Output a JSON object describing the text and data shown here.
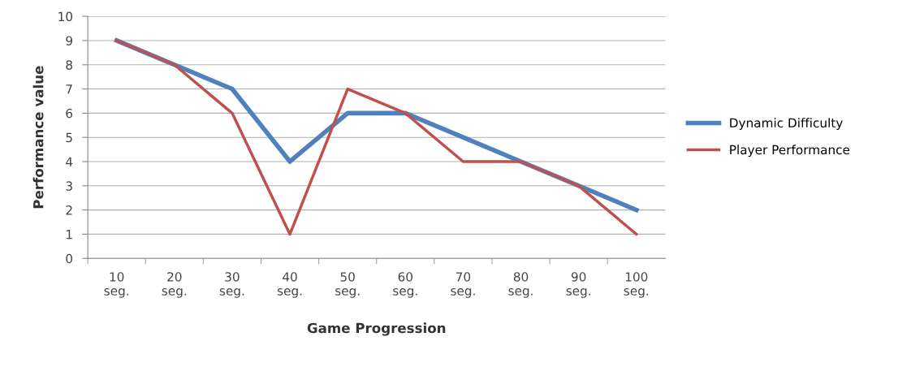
{
  "chart_data": {
    "type": "line",
    "xlabel": "Game Progression",
    "ylabel": "Performance value",
    "categories": [
      "10\nseg.",
      "20\nseg.",
      "30\nseg.",
      "40\nseg.",
      "50\nseg.",
      "60\nseg.",
      "70\nseg.",
      "80\nseg.",
      "90\nseg.",
      "100\nseg."
    ],
    "series": [
      {
        "name": "Dynamic Difficulty",
        "color": "#4f81bd",
        "values": [
          9,
          8,
          7,
          4,
          6,
          6,
          5,
          4,
          3,
          2
        ]
      },
      {
        "name": "Player Performance",
        "color": "#c0504d",
        "values": [
          9,
          8,
          6,
          1,
          7,
          6,
          4,
          4,
          3,
          1
        ]
      }
    ],
    "ylim": [
      0,
      10
    ],
    "yticks": [
      0,
      1,
      2,
      3,
      4,
      5,
      6,
      7,
      8,
      9,
      10
    ],
    "grid": "y",
    "legend": "right",
    "marker": "none",
    "line_style": "solid"
  }
}
